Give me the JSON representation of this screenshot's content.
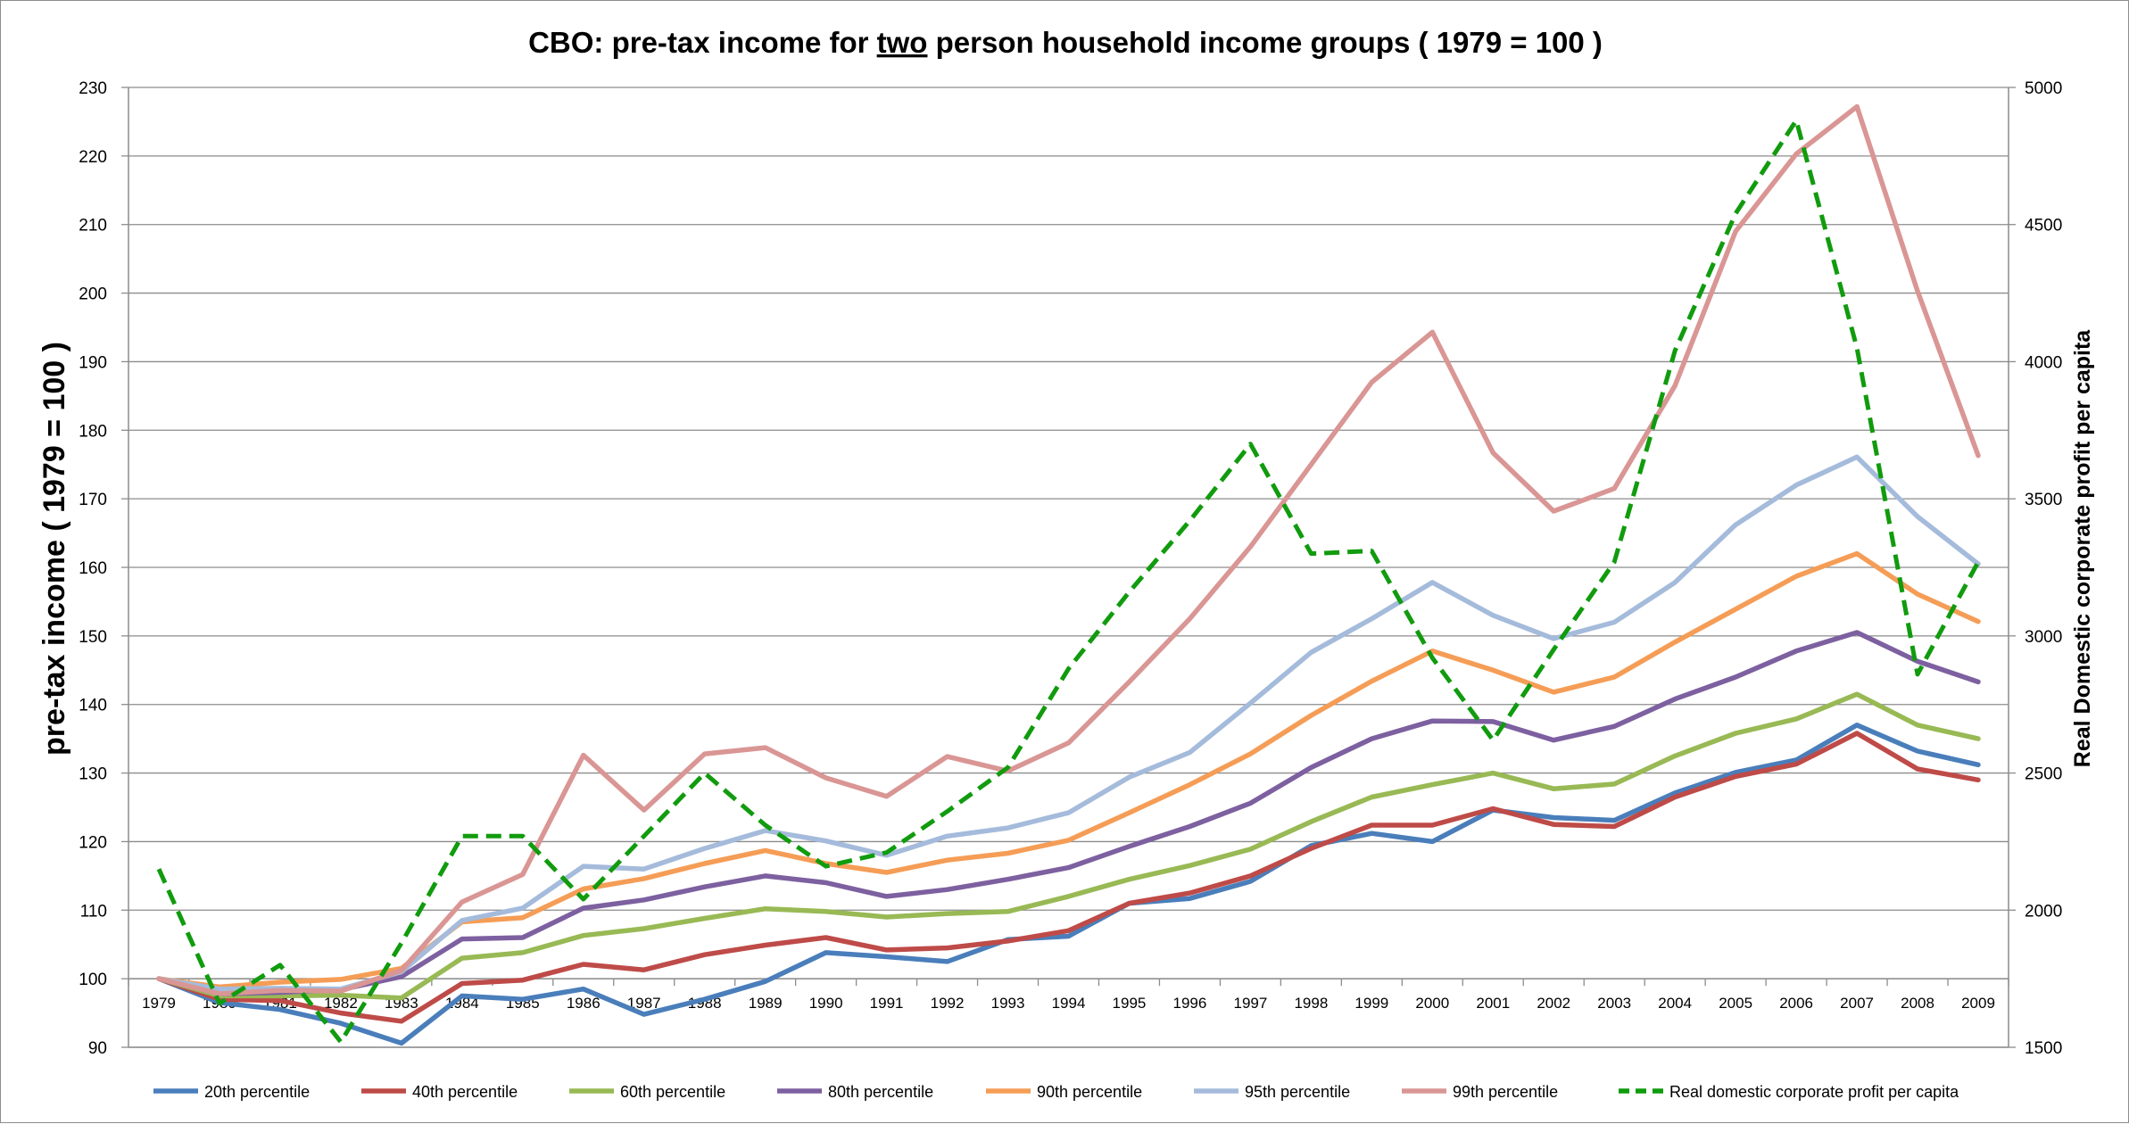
{
  "chart_data": {
    "type": "line",
    "title_parts": [
      "CBO: pre-tax income for ",
      "two",
      " person household income groups ( 1979 = 100 )"
    ],
    "ylabel": "pre-tax income ( 1979 = 100 )",
    "y2label": "Real Domestic corporate profit per capita",
    "ylim": [
      90,
      230
    ],
    "y2lim": [
      1500,
      5000
    ],
    "yticks": [
      90,
      100,
      110,
      120,
      130,
      140,
      150,
      160,
      170,
      180,
      190,
      200,
      210,
      220,
      230
    ],
    "y2ticks": [
      1500,
      2000,
      2500,
      3000,
      3500,
      4000,
      4500,
      5000
    ],
    "grid": true,
    "legend_position": "bottom",
    "x": [
      "1979",
      "1980",
      "1981",
      "1982",
      "1983",
      "1984",
      "1985",
      "1986",
      "1987",
      "1988",
      "1989",
      "1990",
      "1991",
      "1992",
      "1993",
      "1994",
      "1995",
      "1996",
      "1997",
      "1998",
      "1999",
      "2000",
      "2001",
      "2002",
      "2003",
      "2004",
      "2005",
      "2006",
      "2007",
      "2008",
      "2009"
    ],
    "series": [
      {
        "name": "20th percentile",
        "axis": "left",
        "color": "#4a7ebb",
        "dashed": false,
        "values": [
          100,
          96.5,
          95.5,
          93.5,
          90.6,
          97.5,
          97,
          98.5,
          94.8,
          97,
          99.6,
          103.8,
          103.2,
          102.5,
          105.7,
          106.2,
          111,
          111.7,
          114.2,
          119.4,
          121.2,
          120,
          124.6,
          123.5,
          123.1,
          127.1,
          130.1,
          131.9,
          137,
          133.2,
          131.2
        ]
      },
      {
        "name": "40th percentile",
        "axis": "left",
        "color": "#be4b48",
        "dashed": false,
        "values": [
          100,
          97,
          96.8,
          95,
          93.8,
          99.3,
          99.8,
          102.1,
          101.3,
          103.5,
          104.9,
          106,
          104.2,
          104.5,
          105.5,
          107,
          111,
          112.5,
          115,
          119,
          122.4,
          122.4,
          124.8,
          122.5,
          122.2,
          126.5,
          129.5,
          131.3,
          135.8,
          130.6,
          129
        ]
      },
      {
        "name": "60th percentile",
        "axis": "left",
        "color": "#98b954",
        "dashed": false,
        "values": [
          100,
          97.5,
          97.5,
          97.6,
          97.2,
          103,
          103.8,
          106.3,
          107.3,
          108.8,
          110.2,
          109.8,
          109,
          109.5,
          109.8,
          112,
          114.5,
          116.5,
          118.9,
          122.9,
          126.5,
          128.3,
          130,
          127.7,
          128.4,
          132.5,
          135.8,
          137.9,
          141.5,
          137,
          135
        ]
      },
      {
        "name": "80th percentile",
        "axis": "left",
        "color": "#7d60a0",
        "dashed": false,
        "values": [
          100,
          97.8,
          98,
          98.4,
          100.3,
          105.8,
          106,
          110.3,
          111.5,
          113.4,
          115,
          114,
          112,
          113,
          114.5,
          116.2,
          119.3,
          122.2,
          125.6,
          130.8,
          135,
          137.6,
          137.5,
          134.8,
          136.8,
          140.8,
          144,
          147.8,
          150.5,
          146.3,
          143.3
        ]
      },
      {
        "name": "90th percentile",
        "axis": "left",
        "color": "#f59d56",
        "dashed": false,
        "values": [
          100,
          98.8,
          99.5,
          99.9,
          101.5,
          108.3,
          108.9,
          113.1,
          114.6,
          116.8,
          118.7,
          116.8,
          115.5,
          117.3,
          118.3,
          120.2,
          124.2,
          128.3,
          132.8,
          138.4,
          143.4,
          147.8,
          145,
          141.8,
          144,
          149.1,
          153.9,
          158.7,
          162,
          156.1,
          152.1
        ]
      },
      {
        "name": "95th percentile",
        "axis": "left",
        "color": "#a5bbdb",
        "dashed": false,
        "values": [
          100,
          98.5,
          98.6,
          98.5,
          101,
          108.5,
          110.3,
          116.4,
          116,
          119,
          121.6,
          120.1,
          118,
          120.8,
          122,
          124.2,
          129.4,
          133,
          140.2,
          147.6,
          152.5,
          157.8,
          153,
          149.6,
          152,
          157.8,
          166.2,
          172,
          176.1,
          167.4,
          160.5
        ]
      },
      {
        "name": "99th percentile",
        "axis": "left",
        "color": "#d99694",
        "dashed": false,
        "values": [
          100,
          97.8,
          98.3,
          98.2,
          101.2,
          111.2,
          115.2,
          132.6,
          124.6,
          132.8,
          133.7,
          129.3,
          126.6,
          132.4,
          130.3,
          134.4,
          143.3,
          152.5,
          163,
          175,
          187,
          194.3,
          176.7,
          168.2,
          171.5,
          186.5,
          209,
          220.3,
          227.2,
          200.3,
          176.3
        ]
      },
      {
        "name": "Real domestic corporate profit per capita",
        "axis": "right",
        "color": "#119b0e",
        "dashed": true,
        "values": [
          2150,
          1660,
          1800,
          1520,
          1880,
          2270,
          2270,
          2040,
          2270,
          2500,
          2310,
          2160,
          2210,
          2360,
          2520,
          2880,
          3160,
          3420,
          3700,
          3300,
          3310,
          2920,
          2620,
          2950,
          3270,
          4040,
          4540,
          4880,
          4050,
          2860,
          3270
        ]
      }
    ]
  }
}
